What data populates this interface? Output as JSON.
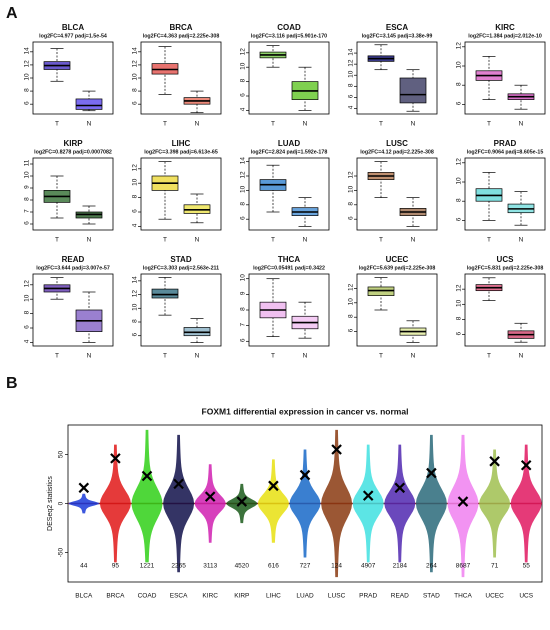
{
  "panel_a": {
    "label": "A",
    "charts": [
      {
        "type": "box",
        "title": "BLCA",
        "subtitle": "log2FC=4.977    padj=1.5e-54",
        "categories": [
          "T",
          "N"
        ],
        "ylim": [
          4.5,
          15.5
        ],
        "yticks": [
          6,
          8,
          10,
          12,
          14
        ],
        "boxes": [
          {
            "color": "#6a5acd",
            "low": 9.5,
            "q1": 11.3,
            "median": 11.9,
            "q3": 12.5,
            "high": 14.5
          },
          {
            "color": "#7b6cf0",
            "low": 5,
            "q1": 5.2,
            "median": 5.8,
            "q3": 6.8,
            "high": 8
          }
        ]
      },
      {
        "type": "box",
        "title": "BRCA",
        "subtitle": "log2FC=4.363    padj=2.225e-308",
        "categories": [
          "T",
          "N"
        ],
        "ylim": [
          4.5,
          15.5
        ],
        "yticks": [
          6,
          8,
          10,
          12,
          14
        ],
        "boxes": [
          {
            "color": "#e8736f",
            "low": 7.5,
            "q1": 10.6,
            "median": 11.3,
            "q3": 12.2,
            "high": 14.8
          },
          {
            "color": "#ec8a7a",
            "low": 4.7,
            "q1": 6,
            "median": 6.5,
            "q3": 7,
            "high": 8
          }
        ]
      },
      {
        "type": "box",
        "title": "COAD",
        "subtitle": "log2FC=3.116    padj=5.901e-170",
        "categories": [
          "T",
          "N"
        ],
        "ylim": [
          3.5,
          13.5
        ],
        "yticks": [
          4,
          6,
          8,
          10,
          12
        ],
        "boxes": [
          {
            "color": "#8fd26a",
            "low": 10,
            "q1": 11.3,
            "median": 11.7,
            "q3": 12.1,
            "high": 13
          },
          {
            "color": "#7fd050",
            "low": 4,
            "q1": 5.5,
            "median": 6.7,
            "q3": 8,
            "high": 10
          }
        ]
      },
      {
        "type": "box",
        "title": "ESCA",
        "subtitle": "log2FC=3.145    padj=3.38e-99",
        "categories": [
          "T",
          "N"
        ],
        "ylim": [
          3,
          16
        ],
        "yticks": [
          4,
          6,
          8,
          10,
          12,
          14
        ],
        "boxes": [
          {
            "color": "#3a3a8a",
            "low": 11,
            "q1": 12.5,
            "median": 13,
            "q3": 13.5,
            "high": 15.5
          },
          {
            "color": "#606080",
            "low": 3.5,
            "q1": 5,
            "median": 6.5,
            "q3": 9.5,
            "high": 11
          }
        ]
      },
      {
        "type": "box",
        "title": "KIRC",
        "subtitle": "log2FC=1.384    padj=2.012e-10",
        "categories": [
          "T",
          "N"
        ],
        "ylim": [
          5,
          12.5
        ],
        "yticks": [
          6,
          8,
          10,
          12
        ],
        "boxes": [
          {
            "color": "#e080d0",
            "low": 6.5,
            "q1": 8.5,
            "median": 9,
            "q3": 9.5,
            "high": 11
          },
          {
            "color": "#d870c8",
            "low": 5.5,
            "q1": 6.5,
            "median": 6.8,
            "q3": 7.1,
            "high": 8
          }
        ]
      },
      {
        "type": "box",
        "title": "KIRP",
        "subtitle": "log2FC=0.8278    padj=0.0007082",
        "categories": [
          "T",
          "N"
        ],
        "ylim": [
          5.5,
          11.5
        ],
        "yticks": [
          6,
          7,
          8,
          9,
          10,
          11
        ],
        "boxes": [
          {
            "color": "#5a8a5a",
            "low": 6.5,
            "q1": 7.8,
            "median": 8.3,
            "q3": 8.8,
            "high": 10
          },
          {
            "color": "#4e7a4e",
            "low": 6,
            "q1": 6.5,
            "median": 6.8,
            "q3": 7,
            "high": 7.5
          }
        ]
      },
      {
        "type": "box",
        "title": "LIHC",
        "subtitle": "log2FC=3.398    padj=6.613e-65",
        "categories": [
          "T",
          "N"
        ],
        "ylim": [
          3.5,
          13.5
        ],
        "yticks": [
          4,
          6,
          8,
          10,
          12
        ],
        "boxes": [
          {
            "color": "#f0e060",
            "low": 5,
            "q1": 9,
            "median": 10,
            "q3": 11,
            "high": 13
          },
          {
            "color": "#f0e870",
            "low": 4.5,
            "q1": 5.8,
            "median": 6.3,
            "q3": 7,
            "high": 8.5
          }
        ]
      },
      {
        "type": "box",
        "title": "LUAD",
        "subtitle": "log2FC=2.824    padj=1.592e-178",
        "categories": [
          "T",
          "N"
        ],
        "ylim": [
          4.5,
          14.5
        ],
        "yticks": [
          6,
          8,
          10,
          12,
          14
        ],
        "boxes": [
          {
            "color": "#5a9ad8",
            "low": 7,
            "q1": 10,
            "median": 10.8,
            "q3": 11.5,
            "high": 13.5
          },
          {
            "color": "#6aa4dc",
            "low": 5,
            "q1": 6.5,
            "median": 7,
            "q3": 7.6,
            "high": 9
          }
        ]
      },
      {
        "type": "box",
        "title": "LUSC",
        "subtitle": "log2FC=4.12    padj=2.225e-308",
        "categories": [
          "T",
          "N"
        ],
        "ylim": [
          4.5,
          14.5
        ],
        "yticks": [
          6,
          8,
          10,
          12
        ],
        "boxes": [
          {
            "color": "#c09070",
            "low": 9,
            "q1": 11.5,
            "median": 12,
            "q3": 12.5,
            "high": 14
          },
          {
            "color": "#b08a70",
            "low": 5,
            "q1": 6.5,
            "median": 7,
            "q3": 7.5,
            "high": 9
          }
        ]
      },
      {
        "type": "box",
        "title": "PRAD",
        "subtitle": "log2FC=0.9064    padj=8.605e-15",
        "categories": [
          "T",
          "N"
        ],
        "ylim": [
          5,
          12.5
        ],
        "yticks": [
          6,
          8,
          10,
          12
        ],
        "boxes": [
          {
            "color": "#80e0e0",
            "low": 6,
            "q1": 8,
            "median": 8.6,
            "q3": 9.3,
            "high": 11
          },
          {
            "color": "#90e4e4",
            "low": 5.5,
            "q1": 6.8,
            "median": 7.2,
            "q3": 7.7,
            "high": 9
          }
        ]
      },
      {
        "type": "box",
        "title": "READ",
        "subtitle": "log2FC=3.644    padj=3.007e-57",
        "categories": [
          "T",
          "N"
        ],
        "ylim": [
          3.5,
          13.5
        ],
        "yticks": [
          4,
          6,
          8,
          10,
          12
        ],
        "boxes": [
          {
            "color": "#8060c0",
            "low": 10,
            "q1": 11,
            "median": 11.5,
            "q3": 12,
            "high": 13
          },
          {
            "color": "#9a80d0",
            "low": 4,
            "q1": 5.5,
            "median": 7,
            "q3": 8.5,
            "high": 11
          }
        ]
      },
      {
        "type": "box",
        "title": "STAD",
        "subtitle": "log2FC=3.303    padj=2.563e-211",
        "categories": [
          "T",
          "N"
        ],
        "ylim": [
          4.5,
          15
        ],
        "yticks": [
          6,
          8,
          10,
          12,
          14
        ],
        "boxes": [
          {
            "color": "#5a8a9a",
            "low": 9,
            "q1": 11.5,
            "median": 12,
            "q3": 12.8,
            "high": 14.5
          },
          {
            "color": "#a0c0d0",
            "low": 5,
            "q1": 6,
            "median": 6.5,
            "q3": 7.2,
            "high": 8.5
          }
        ]
      },
      {
        "type": "box",
        "title": "THCA",
        "subtitle": "log2FC=0.05491    padj=0.3422",
        "categories": [
          "T",
          "N"
        ],
        "ylim": [
          5.7,
          10.3
        ],
        "yticks": [
          6,
          7,
          8,
          9,
          10
        ],
        "boxes": [
          {
            "color": "#f0c0f0",
            "low": 6.3,
            "q1": 7.5,
            "median": 8,
            "q3": 8.5,
            "high": 10
          },
          {
            "color": "#f4ccf4",
            "low": 6.2,
            "q1": 6.8,
            "median": 7.2,
            "q3": 7.6,
            "high": 8.5
          }
        ]
      },
      {
        "type": "box",
        "title": "UCEC",
        "subtitle": "log2FC=5.639    padj=2.225e-308",
        "categories": [
          "T",
          "N"
        ],
        "ylim": [
          4,
          14
        ],
        "yticks": [
          6,
          8,
          10,
          12
        ],
        "boxes": [
          {
            "color": "#c0d080",
            "low": 9,
            "q1": 11,
            "median": 11.7,
            "q3": 12.2,
            "high": 13.5
          },
          {
            "color": "#e8f0b0",
            "low": 4.5,
            "q1": 5.5,
            "median": 6,
            "q3": 6.5,
            "high": 7.5
          }
        ]
      },
      {
        "type": "box",
        "title": "UCS",
        "subtitle": "log2FC=5.831    padj=2.225e-308",
        "categories": [
          "T",
          "N"
        ],
        "ylim": [
          4.5,
          14
        ],
        "yticks": [
          6,
          8,
          10,
          12
        ],
        "boxes": [
          {
            "color": "#e07090",
            "low": 10.5,
            "q1": 11.8,
            "median": 12.2,
            "q3": 12.6,
            "high": 13.5
          },
          {
            "color": "#d86888",
            "low": 5,
            "q1": 5.5,
            "median": 6,
            "q3": 6.5,
            "high": 7.5
          }
        ]
      }
    ]
  },
  "panel_b": {
    "label": "B",
    "chart_data": {
      "type": "violin",
      "title": "FOXM1 differential expression in cancer vs. normal",
      "y_label": "DESeq2 statistics",
      "categories": [
        "BLCA",
        "BRCA",
        "COAD",
        "ESCA",
        "KIRC",
        "KIRP",
        "LIHC",
        "LUAD",
        "LUSC",
        "PRAD",
        "READ",
        "STAD",
        "THCA",
        "UCEC",
        "UCS"
      ],
      "values": [
        16,
        46,
        28,
        20,
        7,
        2,
        18,
        29,
        55,
        8,
        16,
        31,
        2,
        43,
        39
      ],
      "ranks": [
        44,
        95,
        1221,
        2265,
        3113,
        4520,
        616,
        727,
        124,
        4907,
        2184,
        264,
        8687,
        71,
        55
      ],
      "ranges": [
        [
          -10,
          10
        ],
        [
          -60,
          60
        ],
        [
          -60,
          75
        ],
        [
          -70,
          70
        ],
        [
          -40,
          40
        ],
        [
          -20,
          20
        ],
        [
          -40,
          45
        ],
        [
          -55,
          55
        ],
        [
          -75,
          75
        ],
        [
          -60,
          60
        ],
        [
          -60,
          60
        ],
        [
          -70,
          70
        ],
        [
          -75,
          70
        ],
        [
          -55,
          55
        ],
        [
          -60,
          60
        ]
      ],
      "colors": [
        "#1a3ad8",
        "#e01818",
        "#30d018",
        "#10104a",
        "#d020b0",
        "#1a5a1a",
        "#e8e010",
        "#1868c8",
        "#8a3a10",
        "#40e0e0",
        "#5028b0",
        "#2a6a7a",
        "#f080f0",
        "#a0c050",
        "#e01860"
      ],
      "ylim": [
        -80,
        80
      ],
      "yticks": [
        -50,
        0,
        50
      ]
    }
  }
}
